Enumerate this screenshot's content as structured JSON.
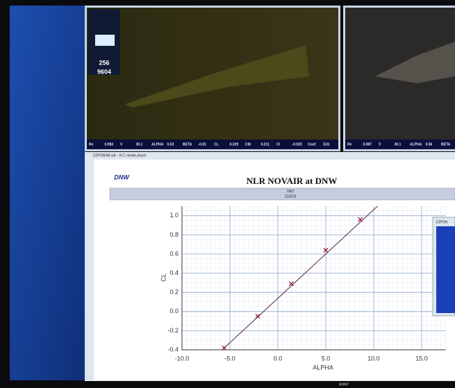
{
  "left_video": {
    "readout": [
      "Re",
      "0.983",
      "V",
      "30.1",
      "ALPHA",
      "0.53",
      "BETA",
      "-0.01",
      "CL",
      "0.329",
      "CM",
      "0.211",
      "Cl",
      "-0.023",
      "Conf",
      "E31"
    ],
    "panel": [
      "256",
      "9604"
    ]
  },
  "right_video": {
    "readout": [
      "Re",
      "0.987",
      "V",
      "30.1",
      "ALPHA",
      "0.56",
      "BETA"
    ]
  },
  "player_window": {
    "title": "D2P2N048.sdt - VLC media player"
  },
  "report": {
    "logo": "DNW",
    "title": "NLR NOVAIR at DNW",
    "label": "TRIT",
    "run": "211613"
  },
  "popup": {
    "title": "D2P2N"
  },
  "brand": "SONY",
  "chart_data": {
    "type": "line",
    "x_label": "ALPHA",
    "y_label": "CL",
    "xlim": [
      -10,
      17.5
    ],
    "ylim": [
      -0.4,
      1.1
    ],
    "xticks": [
      {
        "value": -10,
        "label": "-10.0"
      },
      {
        "value": -5,
        "label": "-5.0"
      },
      {
        "value": 0,
        "label": "0.0"
      },
      {
        "value": 5,
        "label": "5.0"
      },
      {
        "value": 10,
        "label": "10.0"
      },
      {
        "value": 15,
        "label": "15.0"
      }
    ],
    "yticks": [
      {
        "value": -0.4,
        "label": "-0.4"
      },
      {
        "value": -0.2,
        "label": "-0.2"
      },
      {
        "value": 0,
        "label": "0.0"
      },
      {
        "value": 0.2,
        "label": "0.2"
      },
      {
        "value": 0.4,
        "label": "0.4"
      },
      {
        "value": 0.6,
        "label": "0.6"
      },
      {
        "value": 0.8,
        "label": "0.8"
      },
      {
        "value": 1,
        "label": "1.0"
      }
    ],
    "grid": true,
    "series": [
      {
        "x": [
          -5.6,
          -2.1,
          1.4,
          5.0,
          8.6
        ],
        "values": [
          -0.38,
          -0.05,
          0.29,
          0.64,
          0.96
        ],
        "color": "#8a1035",
        "marker": "x"
      },
      {
        "x": [
          -5.6,
          10.4
        ],
        "values": [
          -0.38,
          1.1
        ],
        "color": "#5a2048"
      }
    ]
  }
}
